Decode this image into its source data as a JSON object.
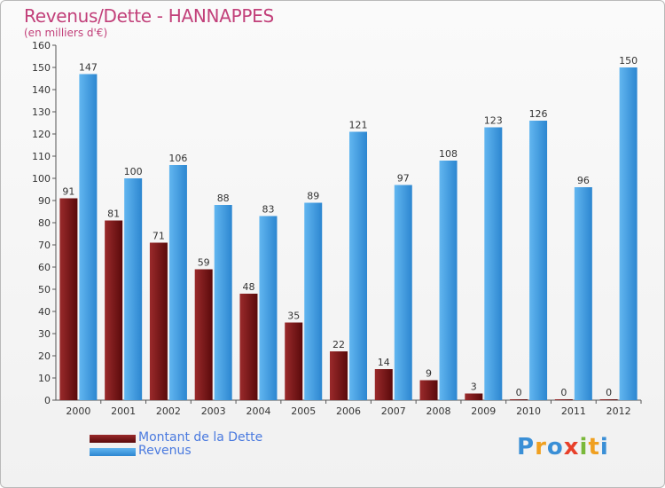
{
  "title": "Revenus/Dette - HANNAPPES",
  "subtitle": "(en milliers d'€)",
  "colors": {
    "dette": "#7a1516",
    "revenus": "#3d9ae0",
    "title": "#c2407a",
    "legend_text": "#4a7adf"
  },
  "chart_data": {
    "type": "bar",
    "categories": [
      "2000",
      "2001",
      "2002",
      "2003",
      "2004",
      "2005",
      "2006",
      "2007",
      "2008",
      "2009",
      "2010",
      "2011",
      "2012"
    ],
    "series": [
      {
        "name": "Montant de la Dette",
        "values": [
          91,
          81,
          71,
          59,
          48,
          35,
          22,
          14,
          9,
          3,
          0,
          0,
          0
        ]
      },
      {
        "name": "Revenus",
        "values": [
          147,
          100,
          106,
          88,
          83,
          89,
          121,
          97,
          108,
          123,
          126,
          96,
          150
        ]
      }
    ],
    "ylim": [
      0,
      160
    ],
    "yticks": [
      0,
      10,
      20,
      30,
      40,
      50,
      60,
      70,
      80,
      90,
      100,
      110,
      120,
      130,
      140,
      150,
      160
    ],
    "grid": false,
    "title": "Revenus/Dette - HANNAPPES",
    "ylabel": "(en milliers d'€)"
  },
  "legend": [
    {
      "label": "Montant de la Dette"
    },
    {
      "label": "Revenus"
    }
  ],
  "logo": {
    "letters": [
      "P",
      "r",
      "o",
      "x",
      "i",
      "t",
      "i"
    ]
  }
}
